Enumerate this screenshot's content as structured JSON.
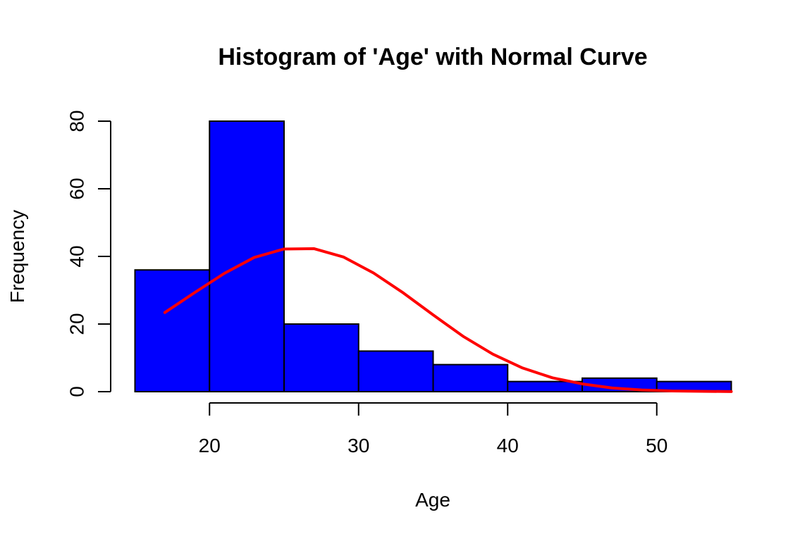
{
  "chart_data": {
    "type": "bar",
    "title": "Histogram of 'Age' with Normal Curve",
    "xlabel": "Age",
    "ylabel": "Frequency",
    "bins": [
      {
        "start": 15,
        "end": 20,
        "count": 36
      },
      {
        "start": 20,
        "end": 25,
        "count": 80
      },
      {
        "start": 25,
        "end": 30,
        "count": 20
      },
      {
        "start": 30,
        "end": 35,
        "count": 12
      },
      {
        "start": 35,
        "end": 40,
        "count": 8
      },
      {
        "start": 40,
        "end": 45,
        "count": 3
      },
      {
        "start": 45,
        "end": 50,
        "count": 4
      },
      {
        "start": 50,
        "end": 55,
        "count": 3
      }
    ],
    "normal_curve": {
      "x": [
        17,
        19,
        21,
        23,
        25,
        27,
        29,
        31,
        33,
        35,
        37,
        39,
        41,
        43,
        45,
        47,
        49,
        51,
        53,
        55
      ],
      "y": [
        23.4,
        29.3,
        35.0,
        39.7,
        42.2,
        42.3,
        39.8,
        35.1,
        29.2,
        22.7,
        16.4,
        11.1,
        7.0,
        4.1,
        2.3,
        1.1,
        0.5,
        0.2,
        0.1,
        0.03
      ]
    },
    "xticks": [
      "20",
      "30",
      "40",
      "50"
    ],
    "yticks": [
      "0",
      "20",
      "40",
      "60",
      "80"
    ],
    "xlim": [
      15,
      55
    ],
    "ylim": [
      0,
      80
    ],
    "grid": false,
    "legend": "none",
    "colors": {
      "bar_fill": "#0000ff",
      "bar_stroke": "#000000",
      "curve": "#ff0000",
      "axis": "#000000"
    }
  }
}
